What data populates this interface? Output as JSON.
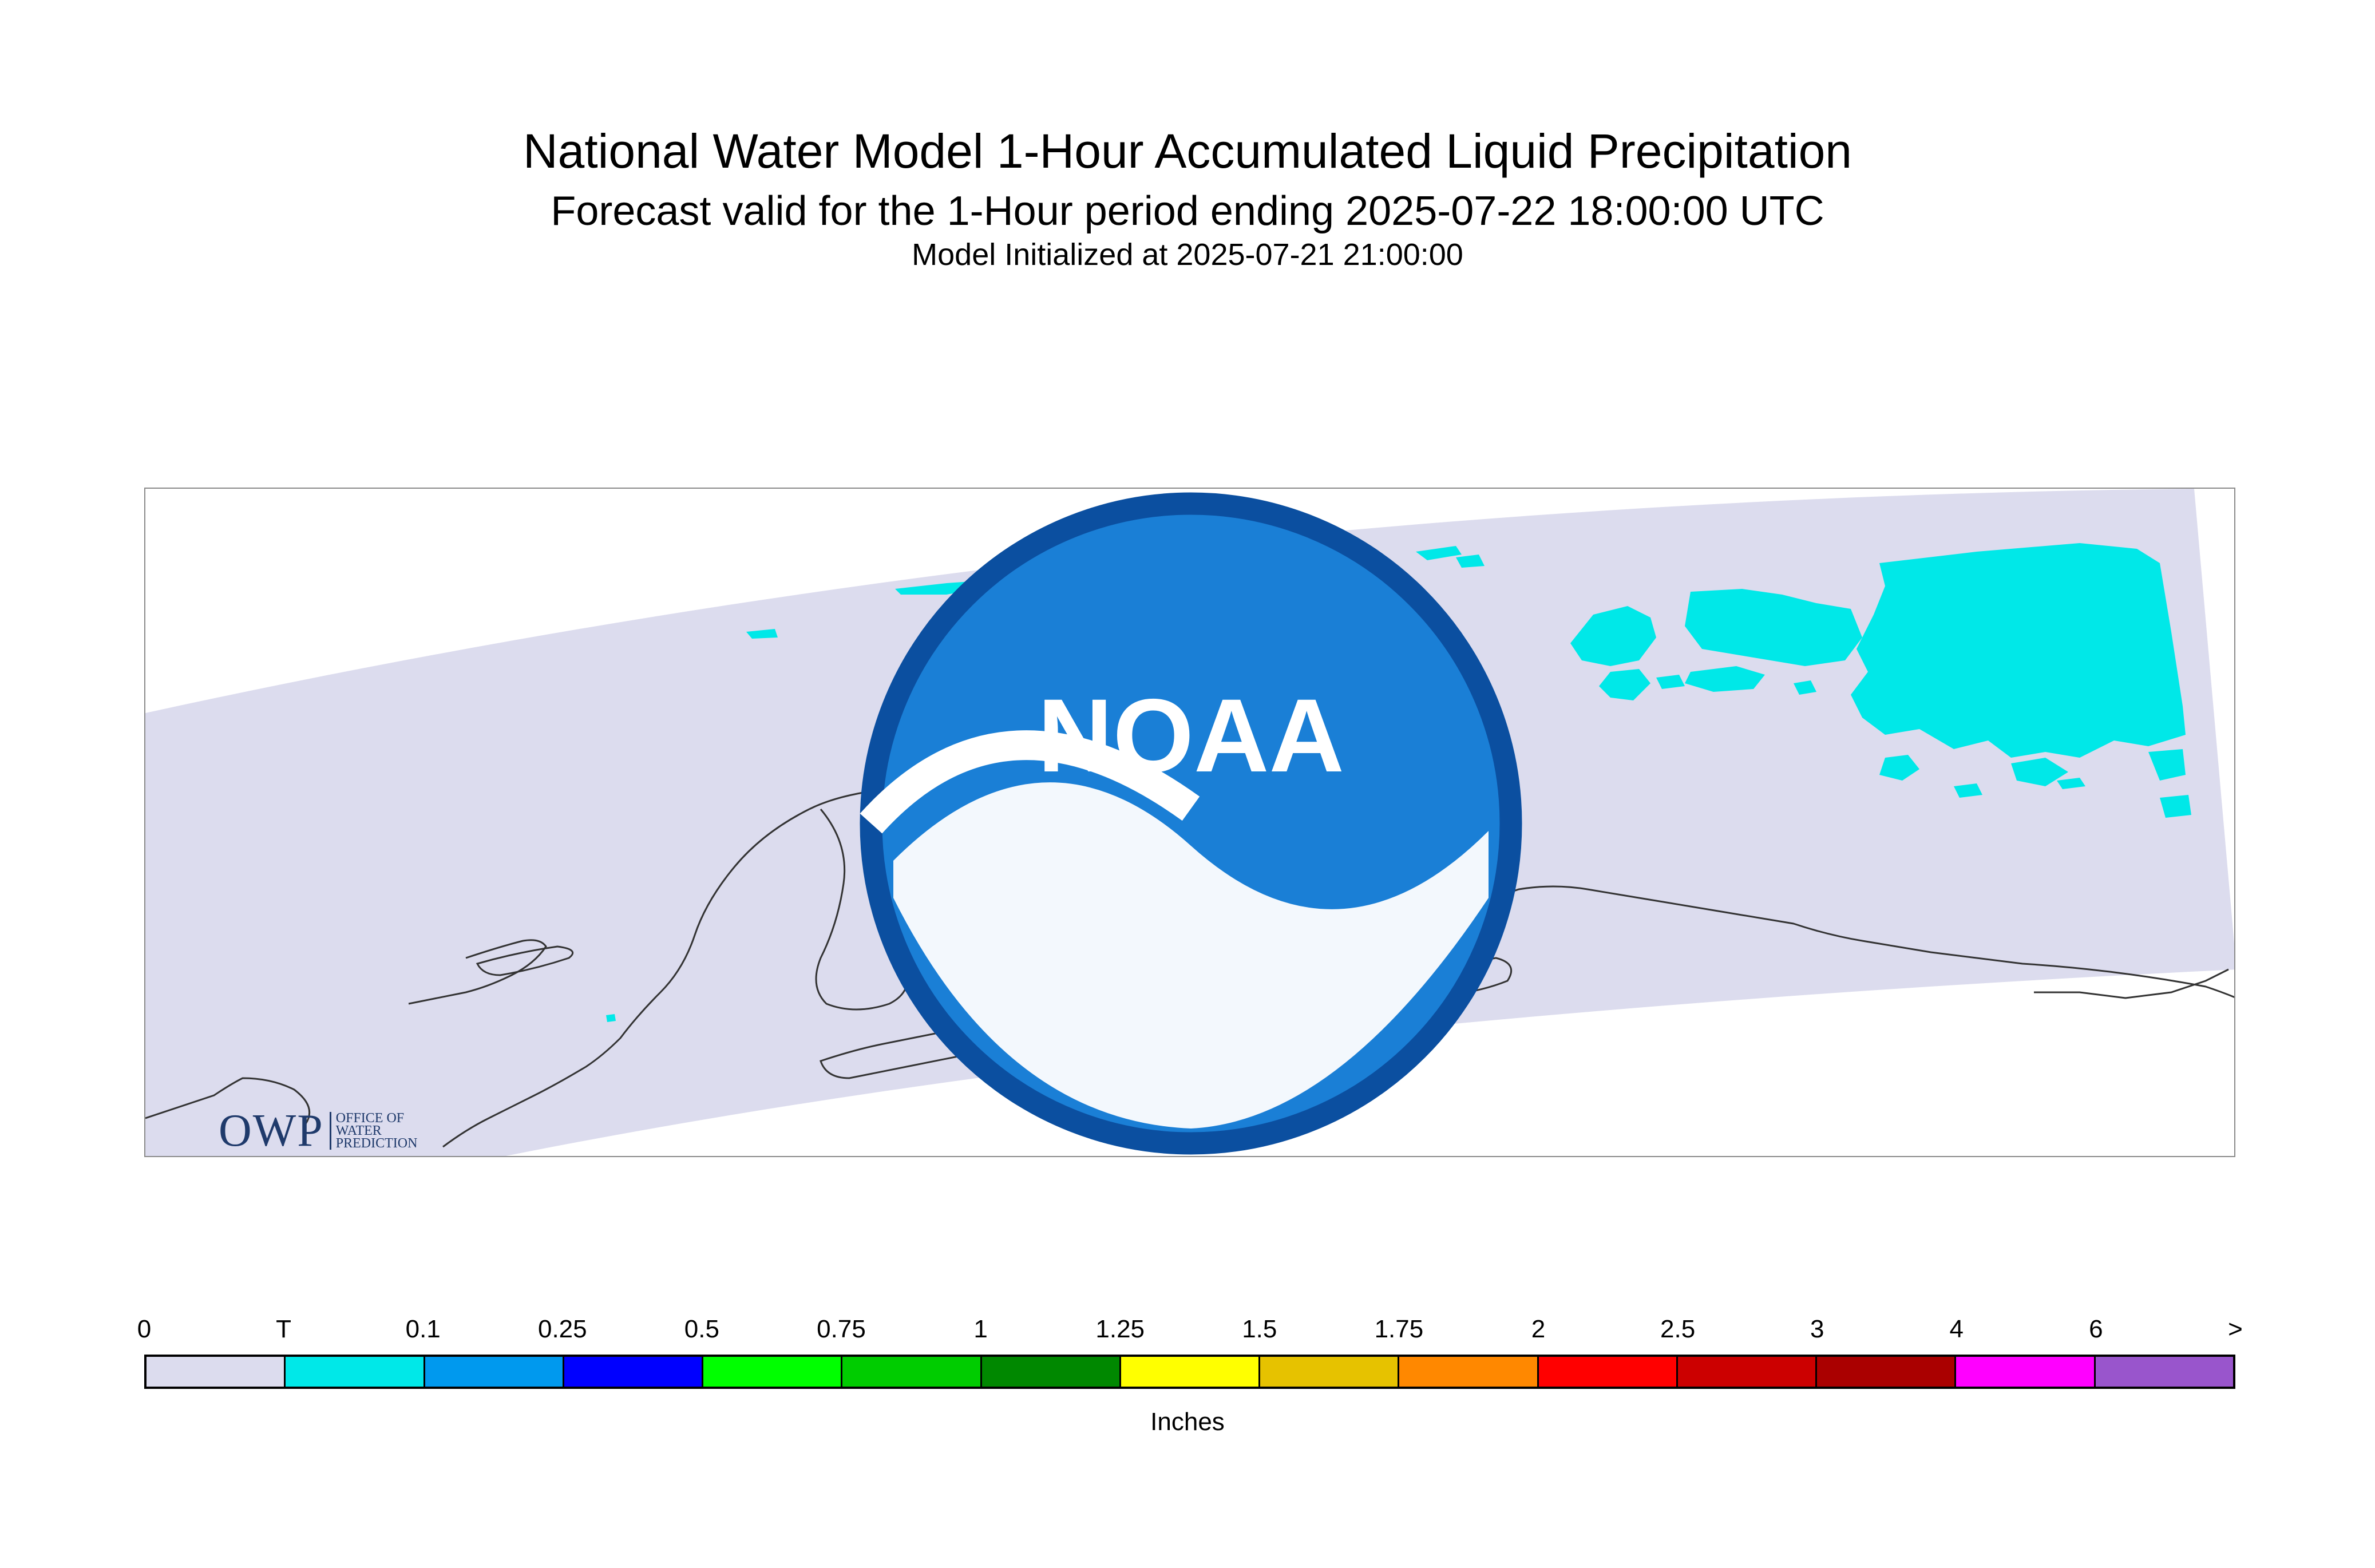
{
  "header": {
    "title": "National Water Model 1-Hour Accumulated Liquid Precipitation",
    "subtitle": "Forecast valid for the 1-Hour period ending 2025-07-22 18:00:00 UTC",
    "initialized": "Model Initialized at 2025-07-21 21:00:00"
  },
  "logos": {
    "owp_mark": "OWP",
    "owp_text": [
      "OFFICE OF",
      "WATER",
      "PREDICTION"
    ],
    "noaa_text": "NOAA"
  },
  "colors": {
    "domain_fill": "#dcdcee",
    "trace_fill": "#00e8e8",
    "coastline": "#333333",
    "frame": "#8a8a8a"
  },
  "legend": {
    "labels": [
      "0",
      "T",
      "0.1",
      "0.25",
      "0.5",
      "0.75",
      "1",
      "1.25",
      "1.5",
      "1.75",
      "2",
      "2.5",
      "3",
      "4",
      "6",
      ">"
    ],
    "colors": [
      "#dcdcee",
      "#00e8e8",
      "#0099ee",
      "#0000ff",
      "#00ff00",
      "#00cc00",
      "#008800",
      "#ffff00",
      "#e6c200",
      "#ff8800",
      "#ff0000",
      "#cc0000",
      "#aa0000",
      "#ff00ff",
      "#9955cc"
    ],
    "units": "Inches"
  }
}
